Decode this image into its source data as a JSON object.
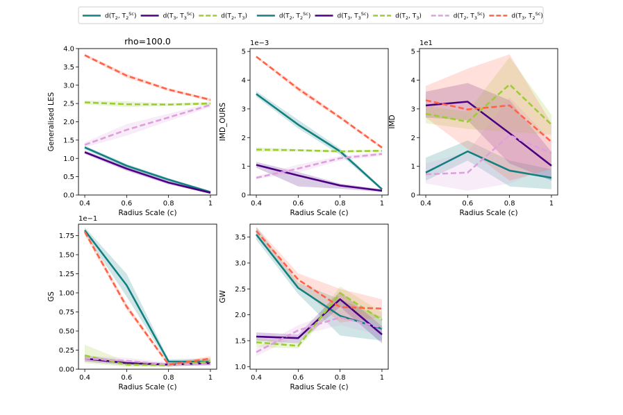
{
  "figure": {
    "legend": [
      {
        "label": "d(T2, T2^Sc)",
        "main": "d(T",
        "s1": "2",
        "mid": ", T",
        "s2": "2",
        "sup": "Sc",
        "end": ")",
        "color": "#128080",
        "dash": "solid"
      },
      {
        "label": "d(T3, T3^Sc)",
        "main": "d(T",
        "s1": "3",
        "mid": ", T",
        "s2": "3",
        "sup": "Sc",
        "end": ")",
        "color": "#4b0082",
        "dash": "solid"
      },
      {
        "label": "d(T2, T3)",
        "main": "d(T",
        "s1": "2",
        "mid": ", T",
        "s2": "3",
        "sup": "",
        "end": ")",
        "color": "#9acd32",
        "dash": "dashed"
      },
      {
        "label": "d(T2, T2^Sc)",
        "main": "d(T",
        "s1": "2",
        "mid": ", T",
        "s2": "2",
        "sup": "Sc",
        "end": ")",
        "color": "#128080",
        "dash": "solid"
      },
      {
        "label": "d(T3, T3^Sc)",
        "main": "d(T",
        "s1": "3",
        "mid": ", T",
        "s2": "3",
        "sup": "Sc",
        "end": ")",
        "color": "#4b0082",
        "dash": "solid"
      },
      {
        "label": "d(T2, T3)",
        "main": "d(T",
        "s1": "2",
        "mid": ", T",
        "s2": "3",
        "sup": "",
        "end": ")",
        "color": "#9acd32",
        "dash": "dashed"
      },
      {
        "label": "d(T2, T3^Sc)",
        "main": "d(T",
        "s1": "2",
        "mid": ", T",
        "s2": "3",
        "sup": "Sc",
        "end": ")",
        "color": "#dda0dd",
        "dash": "dashed"
      },
      {
        "label": "d(T3, T2^Sc)",
        "main": "d(T",
        "s1": "3",
        "mid": ", T",
        "s2": "2",
        "sup": "Sc",
        "end": ")",
        "color": "#ff6347",
        "dash": "dashed"
      }
    ]
  },
  "chart_data": [
    {
      "type": "line",
      "title": "rho=100.0",
      "xlabel": "Radius Scale (c)",
      "ylabel": "Generalised LES",
      "scale_label": "",
      "x": [
        0.4,
        0.6,
        0.8,
        1
      ],
      "xticks": [
        0.4,
        0.6,
        0.8,
        1
      ],
      "xtick_labels": [
        "0.4",
        "0.6",
        "0.8",
        "1"
      ],
      "xlim": [
        0.37,
        1.03
      ],
      "ylim": [
        0,
        4.0
      ],
      "yticks": [
        0,
        0.5,
        1.0,
        1.5,
        2.0,
        2.5,
        3.0,
        3.5,
        4.0
      ],
      "ytick_labels": [
        "0.0",
        "0.5",
        "1.0",
        "1.5",
        "2.0",
        "2.5",
        "3.0",
        "3.5",
        "4.0"
      ],
      "series": [
        {
          "name": "d(T2, T2^Sc)",
          "color": "#128080",
          "dash": "solid",
          "values": [
            1.3,
            0.8,
            0.42,
            0.08
          ],
          "lower": [
            1.25,
            0.75,
            0.38,
            0.05
          ],
          "upper": [
            1.35,
            0.85,
            0.46,
            0.11
          ]
        },
        {
          "name": "d(T3, T3^Sc)",
          "color": "#4b0082",
          "dash": "solid",
          "values": [
            1.17,
            0.72,
            0.34,
            0.06
          ],
          "lower": [
            1.12,
            0.66,
            0.29,
            0.04
          ],
          "upper": [
            1.22,
            0.78,
            0.39,
            0.08
          ]
        },
        {
          "name": "d(T2, T3)",
          "color": "#9acd32",
          "dash": "dashed",
          "values": [
            2.53,
            2.48,
            2.47,
            2.5
          ],
          "lower": [
            2.48,
            2.4,
            2.43,
            2.46
          ],
          "upper": [
            2.58,
            2.56,
            2.51,
            2.54
          ]
        },
        {
          "name": "d(T2, T3^Sc)",
          "color": "#dda0dd",
          "dash": "dashed",
          "values": [
            1.37,
            1.78,
            2.12,
            2.46
          ],
          "lower": [
            1.3,
            1.62,
            2.02,
            2.4
          ],
          "upper": [
            1.44,
            1.94,
            2.22,
            2.52
          ]
        },
        {
          "name": "d(T3, T2^Sc)",
          "color": "#ff6347",
          "dash": "dashed",
          "values": [
            3.82,
            3.26,
            2.88,
            2.6
          ],
          "lower": [
            3.78,
            3.2,
            2.84,
            2.56
          ],
          "upper": [
            3.86,
            3.32,
            2.92,
            2.64
          ]
        }
      ]
    },
    {
      "type": "line",
      "title": "",
      "xlabel": "Radius Scale (c)",
      "ylabel": "IMD_OURS",
      "scale_label": "1e−3",
      "x": [
        0.4,
        0.6,
        0.8,
        1
      ],
      "xticks": [
        0.4,
        0.6,
        0.8,
        1
      ],
      "xtick_labels": [
        "0.4",
        "0.6",
        "0.8",
        "1"
      ],
      "xlim": [
        0.37,
        1.03
      ],
      "ylim": [
        0,
        5.1
      ],
      "yticks": [
        0,
        1,
        2,
        3,
        4,
        5
      ],
      "ytick_labels": [
        "0",
        "1",
        "2",
        "3",
        "4",
        "5"
      ],
      "series": [
        {
          "name": "d(T2, T2^Sc)",
          "color": "#128080",
          "dash": "solid",
          "values": [
            3.52,
            2.45,
            1.52,
            0.2
          ],
          "lower": [
            3.42,
            2.32,
            1.4,
            0.15
          ],
          "upper": [
            3.62,
            2.62,
            1.62,
            0.25
          ]
        },
        {
          "name": "d(T3, T3^Sc)",
          "color": "#4b0082",
          "dash": "solid",
          "values": [
            1.05,
            0.68,
            0.33,
            0.15
          ],
          "lower": [
            0.95,
            0.3,
            0.22,
            0.1
          ],
          "upper": [
            1.15,
            0.8,
            0.4,
            0.2
          ]
        },
        {
          "name": "d(T2, T3)",
          "color": "#9acd32",
          "dash": "dashed",
          "values": [
            1.58,
            1.56,
            1.52,
            1.54
          ],
          "lower": [
            1.5,
            1.52,
            1.48,
            1.5
          ],
          "upper": [
            1.66,
            1.6,
            1.56,
            1.58
          ]
        },
        {
          "name": "d(T2, T3^Sc)",
          "color": "#dda0dd",
          "dash": "dashed",
          "values": [
            0.6,
            0.92,
            1.28,
            1.43
          ],
          "lower": [
            0.55,
            0.78,
            1.2,
            1.36
          ],
          "upper": [
            0.65,
            1.06,
            1.36,
            1.5
          ]
        },
        {
          "name": "d(T3, T2^Sc)",
          "color": "#ff6347",
          "dash": "dashed",
          "values": [
            4.82,
            3.7,
            2.7,
            1.65
          ],
          "lower": [
            4.78,
            3.62,
            2.64,
            1.6
          ],
          "upper": [
            4.86,
            3.78,
            2.76,
            1.7
          ]
        }
      ]
    },
    {
      "type": "line",
      "title": "",
      "xlabel": "Radius Scale (c)",
      "ylabel": "IMD",
      "scale_label": "1e1",
      "x": [
        0.4,
        0.6,
        0.8,
        1
      ],
      "xticks": [
        0.4,
        0.6,
        0.8,
        1
      ],
      "xtick_labels": [
        "0.4",
        "0.6",
        "0.8",
        "1"
      ],
      "xlim": [
        0.37,
        1.03
      ],
      "ylim": [
        0,
        5.1
      ],
      "yticks": [
        0,
        1,
        2,
        3,
        4,
        5
      ],
      "ytick_labels": [
        "0",
        "1",
        "2",
        "3",
        "4",
        "5"
      ],
      "series": [
        {
          "name": "d(T2, T2^Sc)",
          "color": "#128080",
          "dash": "solid",
          "values": [
            0.78,
            1.52,
            0.85,
            0.6
          ],
          "lower": [
            0.5,
            1.2,
            0.3,
            0.2
          ],
          "upper": [
            1.3,
            1.9,
            1.2,
            0.9
          ]
        },
        {
          "name": "d(T3, T3^Sc)",
          "color": "#4b0082",
          "dash": "solid",
          "values": [
            3.12,
            3.25,
            2.15,
            1.02
          ],
          "lower": [
            2.7,
            2.6,
            1.1,
            0.5
          ],
          "upper": [
            3.6,
            3.9,
            3.3,
            1.5
          ]
        },
        {
          "name": "d(T2, T3)",
          "color": "#9acd32",
          "dash": "dashed",
          "values": [
            2.83,
            2.55,
            3.85,
            2.45
          ],
          "lower": [
            2.5,
            2.3,
            2.2,
            2.1
          ],
          "upper": [
            3.1,
            2.9,
            4.8,
            2.8
          ]
        },
        {
          "name": "d(T2, T3^Sc)",
          "color": "#dda0dd",
          "dash": "dashed",
          "values": [
            0.72,
            0.78,
            2.08,
            1.45
          ],
          "lower": [
            0.4,
            0.15,
            0.4,
            1.0
          ],
          "upper": [
            1.1,
            1.5,
            3.4,
            1.9
          ]
        },
        {
          "name": "d(T3, T2^Sc)",
          "color": "#ff6347",
          "dash": "dashed",
          "values": [
            3.3,
            2.98,
            3.12,
            1.85
          ],
          "lower": [
            2.7,
            1.6,
            0.5,
            0.9
          ],
          "upper": [
            3.8,
            4.4,
            4.9,
            2.5
          ]
        }
      ]
    },
    {
      "type": "line",
      "title": "",
      "xlabel": "Radius Scale (c)",
      "ylabel": "GS",
      "scale_label": "1e−1",
      "x": [
        0.4,
        0.6,
        0.8,
        1
      ],
      "xticks": [
        0.4,
        0.6,
        0.8,
        1
      ],
      "xtick_labels": [
        "0.4",
        "0.6",
        "0.8",
        "1"
      ],
      "xlim": [
        0.37,
        1.03
      ],
      "ylim": [
        0,
        1.9
      ],
      "yticks": [
        0,
        0.25,
        0.5,
        0.75,
        1.0,
        1.25,
        1.5,
        1.75
      ],
      "ytick_labels": [
        "0.00",
        "0.25",
        "0.50",
        "0.75",
        "1.00",
        "1.25",
        "1.50",
        "1.75"
      ],
      "series": [
        {
          "name": "d(T2, T2^Sc)",
          "color": "#128080",
          "dash": "solid",
          "values": [
            1.82,
            1.1,
            0.1,
            0.1
          ],
          "lower": [
            1.78,
            0.95,
            0.07,
            0.06
          ],
          "upper": [
            1.86,
            1.25,
            0.13,
            0.14
          ]
        },
        {
          "name": "d(T3, T3^Sc)",
          "color": "#4b0082",
          "dash": "solid",
          "values": [
            0.14,
            0.08,
            0.06,
            0.08
          ],
          "lower": [
            0.1,
            0.05,
            0.04,
            0.05
          ],
          "upper": [
            0.18,
            0.11,
            0.08,
            0.11
          ]
        },
        {
          "name": "d(T2, T3)",
          "color": "#9acd32",
          "dash": "dashed",
          "values": [
            0.18,
            0.06,
            0.05,
            0.1
          ],
          "lower": [
            0.08,
            0.03,
            0.03,
            0.06
          ],
          "upper": [
            0.32,
            0.1,
            0.08,
            0.14
          ]
        },
        {
          "name": "d(T2, T3^Sc)",
          "color": "#dda0dd",
          "dash": "dashed",
          "values": [
            0.14,
            0.11,
            0.06,
            0.07
          ],
          "lower": [
            0.1,
            0.07,
            0.04,
            0.05
          ],
          "upper": [
            0.18,
            0.15,
            0.09,
            0.1
          ]
        },
        {
          "name": "d(T3, T2^Sc)",
          "color": "#ff6347",
          "dash": "dashed",
          "values": [
            1.8,
            0.82,
            0.06,
            0.14
          ],
          "lower": [
            1.76,
            0.78,
            0.04,
            0.11
          ],
          "upper": [
            1.84,
            0.86,
            0.08,
            0.17
          ]
        }
      ]
    },
    {
      "type": "line",
      "title": "",
      "xlabel": "Radius Scale (c)",
      "ylabel": "GW",
      "scale_label": "",
      "x": [
        0.4,
        0.6,
        0.8,
        1
      ],
      "xticks": [
        0.4,
        0.6,
        0.8,
        1
      ],
      "xtick_labels": [
        "0.4",
        "0.6",
        "0.8",
        "1"
      ],
      "xlim": [
        0.37,
        1.03
      ],
      "ylim": [
        0.95,
        3.75
      ],
      "yticks": [
        1.0,
        1.5,
        2.0,
        2.5,
        3.0,
        3.5
      ],
      "ytick_labels": [
        "1.0",
        "1.5",
        "2.0",
        "2.5",
        "3.0",
        "3.5"
      ],
      "series": [
        {
          "name": "d(T2, T2^Sc)",
          "color": "#128080",
          "dash": "solid",
          "values": [
            3.55,
            2.52,
            1.98,
            1.73
          ],
          "lower": [
            3.45,
            2.4,
            1.6,
            1.5
          ],
          "upper": [
            3.7,
            2.62,
            2.3,
            1.95
          ]
        },
        {
          "name": "d(T3, T3^Sc)",
          "color": "#4b0082",
          "dash": "solid",
          "values": [
            1.58,
            1.55,
            2.3,
            1.62
          ],
          "lower": [
            1.5,
            1.45,
            2.15,
            1.45
          ],
          "upper": [
            1.66,
            1.62,
            2.45,
            1.78
          ]
        },
        {
          "name": "d(T2, T3)",
          "color": "#9acd32",
          "dash": "dashed",
          "values": [
            1.47,
            1.4,
            2.42,
            1.9
          ],
          "lower": [
            1.38,
            1.35,
            2.25,
            1.75
          ],
          "upper": [
            1.55,
            1.45,
            2.55,
            2.05
          ]
        },
        {
          "name": "d(T2, T3^Sc)",
          "color": "#dda0dd",
          "dash": "dashed",
          "values": [
            1.28,
            1.7,
            1.95,
            1.75
          ],
          "lower": [
            1.2,
            1.6,
            1.8,
            1.6
          ],
          "upper": [
            1.36,
            1.8,
            2.1,
            1.9
          ]
        },
        {
          "name": "d(T3, T2^Sc)",
          "color": "#ff6347",
          "dash": "dashed",
          "values": [
            3.62,
            2.68,
            2.15,
            2.12
          ],
          "lower": [
            3.55,
            2.55,
            1.85,
            1.95
          ],
          "upper": [
            3.7,
            2.8,
            2.5,
            2.3
          ]
        }
      ]
    }
  ]
}
